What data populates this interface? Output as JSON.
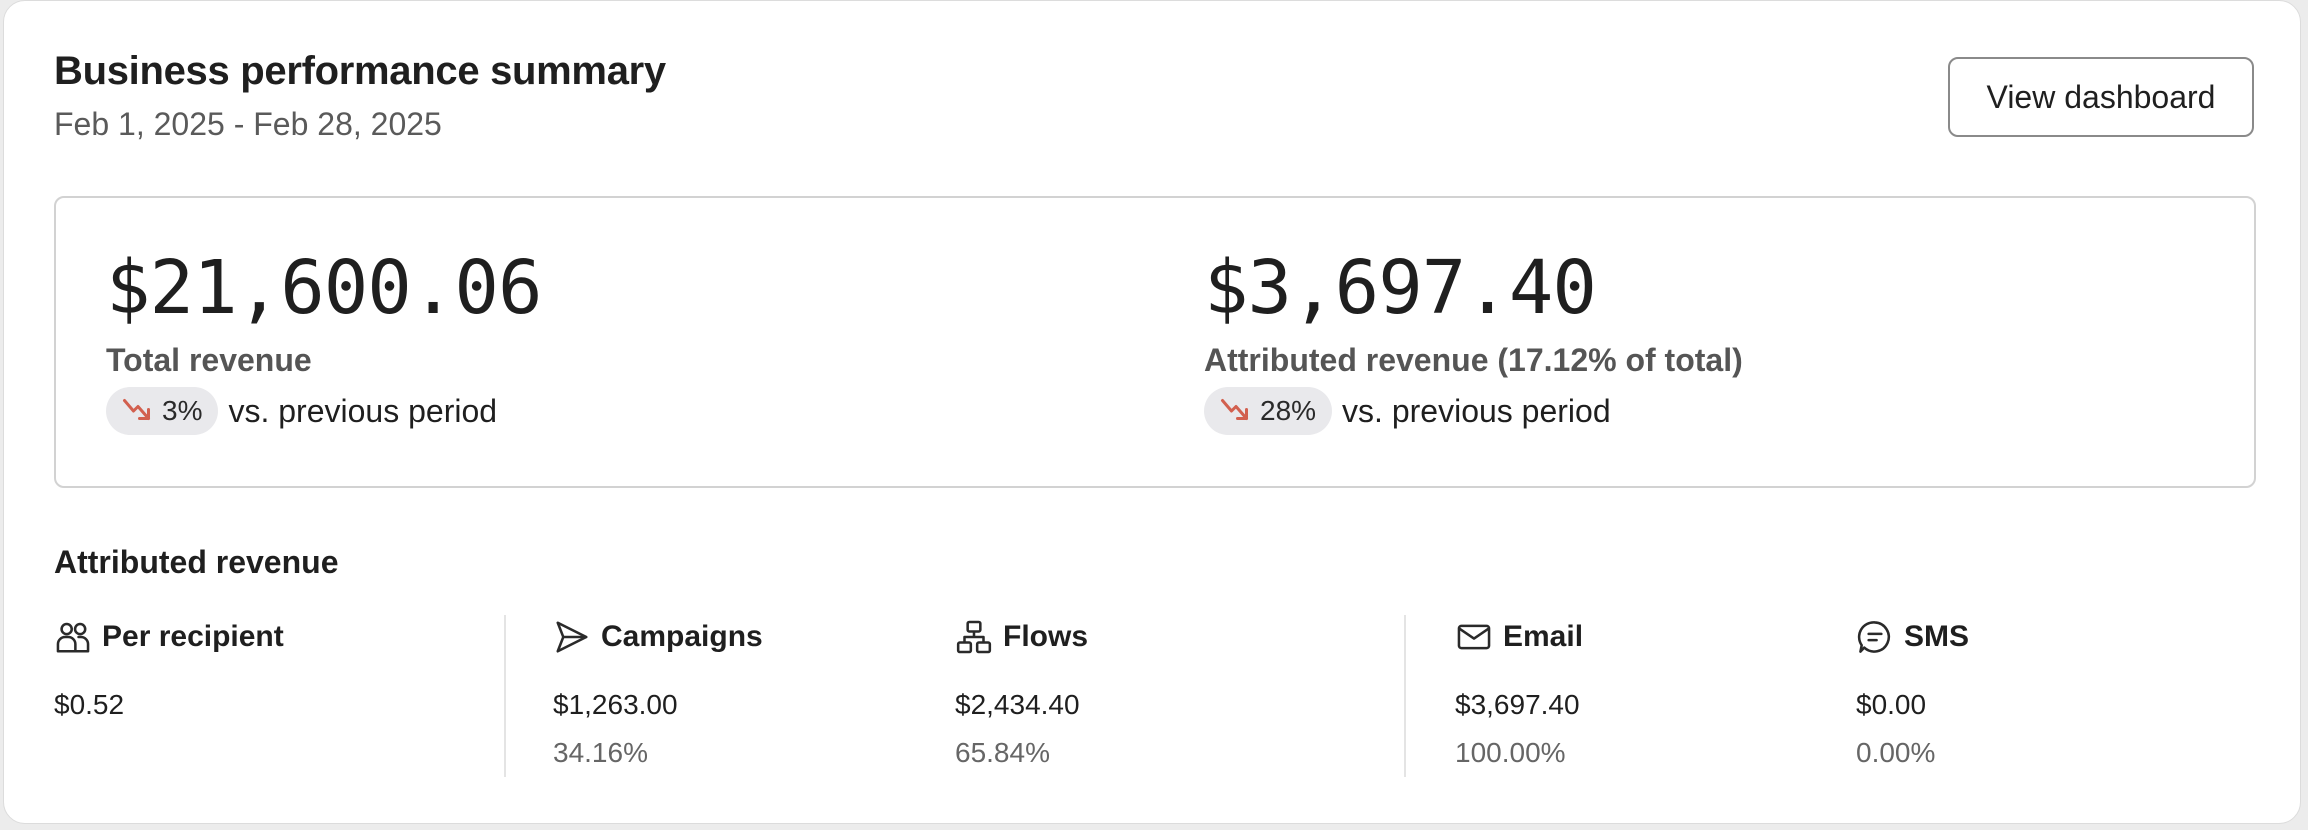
{
  "header": {
    "title": "Business performance summary",
    "date_range": "Feb 1, 2025 - Feb 28, 2025",
    "view_dashboard_label": "View dashboard"
  },
  "summary": {
    "total_revenue": {
      "value": "$21,600.06",
      "label": "Total revenue",
      "delta": "3%",
      "delta_direction": "down",
      "delta_suffix": "vs. previous period"
    },
    "attributed_revenue": {
      "value": "$3,697.40",
      "label": "Attributed revenue (17.12% of total)",
      "delta": "28%",
      "delta_direction": "down",
      "delta_suffix": "vs. previous period"
    }
  },
  "attributed": {
    "title": "Attributed revenue",
    "per_recipient": {
      "label": "Per recipient",
      "value": "$0.52",
      "icon": "people-icon"
    },
    "campaigns": {
      "label": "Campaigns",
      "value": "$1,263.00",
      "percent": "34.16%",
      "icon": "send-icon"
    },
    "flows": {
      "label": "Flows",
      "value": "$2,434.40",
      "percent": "65.84%",
      "icon": "flow-icon"
    },
    "email": {
      "label": "Email",
      "value": "$3,697.40",
      "percent": "100.00%",
      "icon": "email-icon"
    },
    "sms": {
      "label": "SMS",
      "value": "$0.00",
      "percent": "0.00%",
      "icon": "sms-icon"
    }
  },
  "colors": {
    "negative_trend": "#d2604f",
    "pill_background": "#e9e9ec"
  }
}
